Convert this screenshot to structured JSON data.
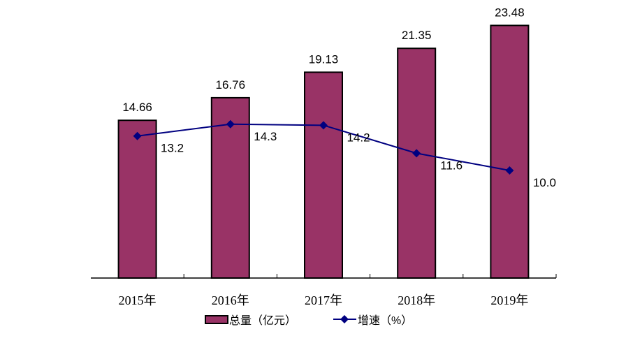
{
  "chart_data": {
    "type": "bar+line",
    "categories": [
      "2015年",
      "2016年",
      "2017年",
      "2018年",
      "2019年"
    ],
    "series": [
      {
        "name": "总量（亿元）",
        "type": "bar",
        "values": [
          14.66,
          16.76,
          19.13,
          21.35,
          23.48
        ],
        "labels": [
          "14.66",
          "16.76",
          "19.13",
          "21.35",
          "23.48"
        ],
        "color": "#993366"
      },
      {
        "name": "增速（%）",
        "type": "line",
        "values": [
          13.2,
          14.3,
          14.2,
          11.6,
          10.0
        ],
        "labels": [
          "13.2",
          "14.3",
          "14.2",
          "11.6",
          "10.0"
        ],
        "color": "#000080",
        "marker": "diamond"
      }
    ],
    "ylim": [
      0,
      25
    ],
    "grid": false,
    "legend": "bottom"
  }
}
